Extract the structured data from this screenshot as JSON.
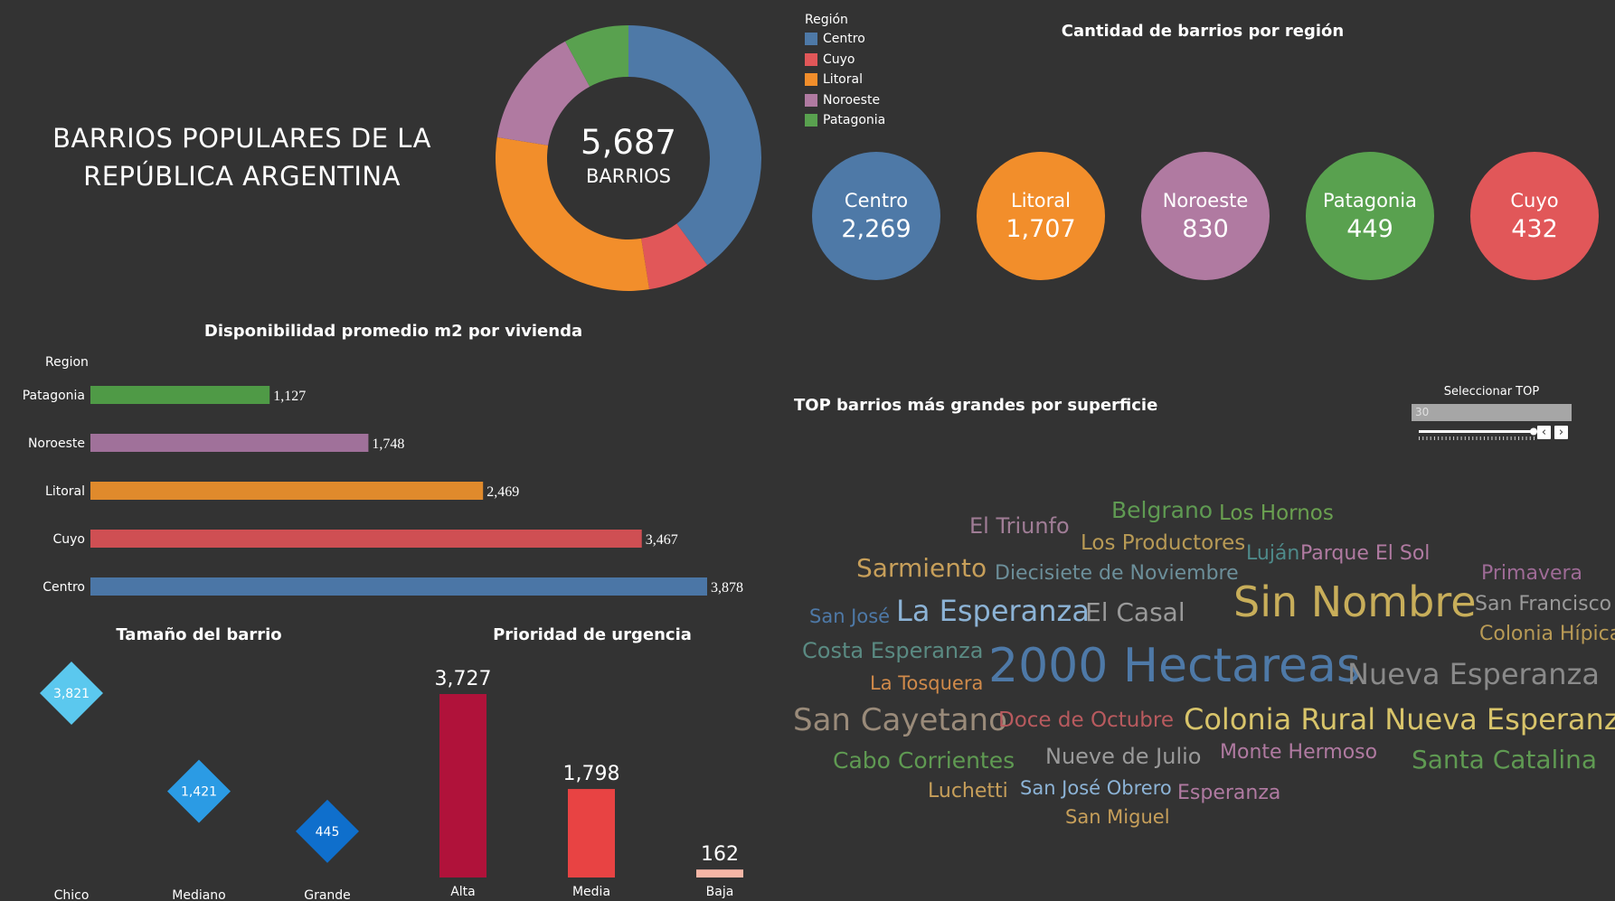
{
  "dashboard_title": "BARRIOS POPULARES DE LA REPÚBLICA ARGENTINA",
  "colors": {
    "Centro": "#4e79a7",
    "Cuyo": "#e15759",
    "Litoral": "#f28e2b",
    "Noroeste": "#b07aa1",
    "Patagonia": "#59a14f"
  },
  "donut": {
    "total_label": "5,687",
    "total_caption": "BARRIOS"
  },
  "legend": {
    "title": "Región",
    "items": [
      "Centro",
      "Cuyo",
      "Litoral",
      "Noroeste",
      "Patagonia"
    ]
  },
  "bubbles_title": "Cantidad de barrios por región",
  "bubbles": [
    {
      "name": "Centro",
      "value": "2,269"
    },
    {
      "name": "Litoral",
      "value": "1,707"
    },
    {
      "name": "Noroeste",
      "value": "830"
    },
    {
      "name": "Patagonia",
      "value": "449"
    },
    {
      "name": "Cuyo",
      "value": "432"
    }
  ],
  "bar_chart": {
    "title": "Disponibilidad promedio m2 por vivienda",
    "axis_header": "Region"
  },
  "size_chart": {
    "title": "Tamaño del barrio"
  },
  "priority_chart": {
    "title": "Prioridad de urgencia"
  },
  "top": {
    "title": "TOP barrios más grandes por superficie",
    "slider_label": "Seleccionar TOP",
    "slider_value": "30",
    "slider_fraction": 1.0
  },
  "chart_data": [
    {
      "type": "pie",
      "title": "",
      "labels": [
        "Centro",
        "Cuyo",
        "Litoral",
        "Noroeste",
        "Patagonia"
      ],
      "values": [
        2269,
        432,
        1707,
        830,
        449
      ]
    },
    {
      "type": "scatter",
      "title": "Cantidad de barrios por región",
      "categories": [
        "Centro",
        "Litoral",
        "Noroeste",
        "Patagonia",
        "Cuyo"
      ],
      "values": [
        2269,
        1707,
        830,
        449,
        432
      ]
    },
    {
      "type": "bar",
      "title": "Disponibilidad promedio m2 por vivienda",
      "ylabel": "Region",
      "categories": [
        "Patagonia",
        "Noroeste",
        "Litoral",
        "Cuyo",
        "Centro"
      ],
      "values": [
        1127,
        1748,
        2469,
        3467,
        3878
      ],
      "labels": [
        "1,127",
        "1,748",
        "2,469",
        "3,467",
        "3,878"
      ],
      "xlim": [
        0,
        3878
      ]
    },
    {
      "type": "scatter",
      "title": "Tamaño del barrio",
      "categories": [
        "Chico",
        "Mediano",
        "Grande"
      ],
      "values": [
        3821,
        1421,
        445
      ],
      "labels": [
        "3,821",
        "1,421",
        "445"
      ],
      "colors": [
        "#5bc8ee",
        "#2b9be4",
        "#0f6fcc"
      ]
    },
    {
      "type": "bar",
      "title": "Prioridad de urgencia",
      "categories": [
        "Alta",
        "Media",
        "Baja"
      ],
      "values": [
        3727,
        1798,
        162
      ],
      "labels": [
        "3,727",
        "1,798",
        "162"
      ],
      "colors": [
        "#b0123a",
        "#e84343",
        "#f6b6a6"
      ],
      "ylim": [
        0,
        3727
      ]
    },
    {
      "type": "table",
      "title": "TOP barrios más grandes por superficie",
      "words": [
        {
          "text": "2000 Hectareas",
          "color": "#4e79a7"
        },
        {
          "text": "Sin Nombre",
          "color": "#c8ae5a"
        },
        {
          "text": "Colonia Rural Nueva Esperanza",
          "color": "#d8c46a"
        },
        {
          "text": "La Esperanza",
          "color": "#8cb3d6"
        },
        {
          "text": "Nueva Esperanza",
          "color": "#8a8a8a"
        },
        {
          "text": "San Cayetano",
          "color": "#9a8b7a"
        },
        {
          "text": "El Casal",
          "color": "#9a9a9a"
        },
        {
          "text": "Sarmiento",
          "color": "#c79f5a"
        },
        {
          "text": "Belgrano",
          "color": "#5f9a52"
        },
        {
          "text": "Santa Catalina",
          "color": "#5f9a52"
        },
        {
          "text": "El Triunfo",
          "color": "#a07d96"
        },
        {
          "text": "Doce de Octubre",
          "color": "#b85a5e"
        },
        {
          "text": "Cabo Corrientes",
          "color": "#5f9a52"
        },
        {
          "text": "Nueve de Julio",
          "color": "#9a9a9a"
        },
        {
          "text": "Costa Esperanza",
          "color": "#5a8a82"
        },
        {
          "text": "Los Productores",
          "color": "#b89a55"
        },
        {
          "text": "Los Hornos",
          "color": "#6aa050"
        },
        {
          "text": "Diecisiete de Noviembre",
          "color": "#6c8f9a"
        },
        {
          "text": "Monte Hermoso",
          "color": "#b07aa1"
        },
        {
          "text": "Primavera",
          "color": "#9e6b96"
        },
        {
          "text": "San Francisco",
          "color": "#9a9a9a"
        },
        {
          "text": "Colonia Hípica",
          "color": "#b89a55"
        },
        {
          "text": "Parque El Sol",
          "color": "#b07aa1"
        },
        {
          "text": "Luján",
          "color": "#4e8a8a"
        },
        {
          "text": "San José",
          "color": "#4e79a7"
        },
        {
          "text": "La Tosquera",
          "color": "#d08a4a"
        },
        {
          "text": "Luchetti",
          "color": "#c79f5a"
        },
        {
          "text": "San José Obrero",
          "color": "#8cb3d6"
        },
        {
          "text": "Esperanza",
          "color": "#b07aa1"
        },
        {
          "text": "San Miguel",
          "color": "#c79f5a"
        }
      ]
    }
  ]
}
